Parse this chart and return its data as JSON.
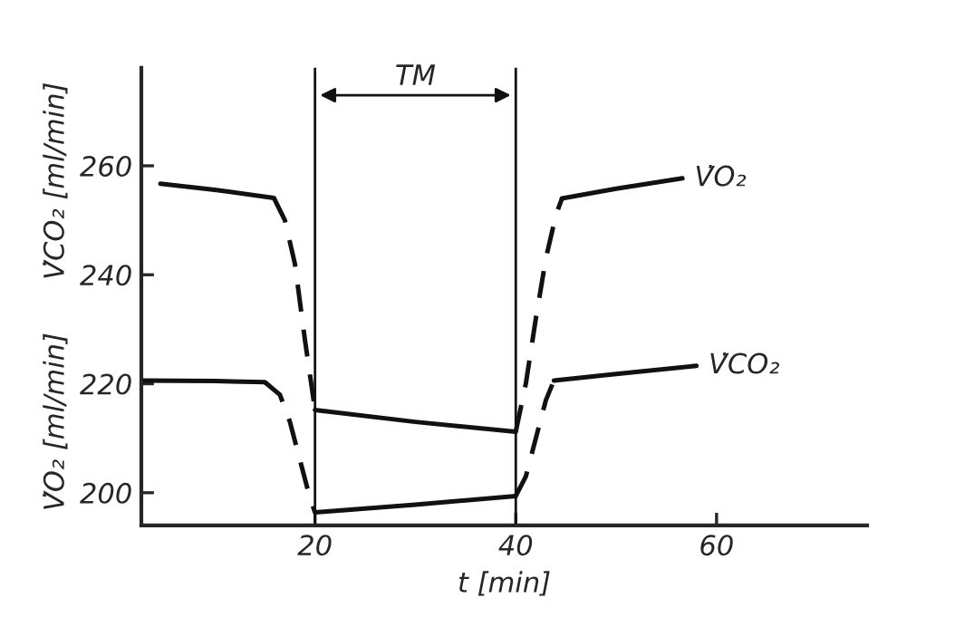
{
  "chart_data": {
    "type": "line",
    "xlabel": "t [min]",
    "ylabel": "V̇O₂ [ml/min]      V̇CO₂ [ml/min]",
    "xlim": [
      2.7,
      75
    ],
    "xticks": [
      20,
      40,
      60
    ],
    "ylim": [
      194,
      278
    ],
    "yticks": [
      200,
      220,
      240,
      260
    ],
    "grid": false,
    "marker": "none",
    "ref_lines": [
      {
        "axis": "x",
        "value": 20,
        "color": "#111111",
        "line_style": "solid"
      },
      {
        "axis": "x",
        "value": 40,
        "color": "#111111",
        "line_style": "solid"
      }
    ],
    "annotations": [
      "TM"
    ],
    "series": [
      {
        "color": "#111111",
        "line_style": "solid",
        "x": [
          4.6,
          10,
          15.9
        ],
        "values": [
          256.7,
          255.6,
          254.1
        ]
      },
      {
        "color": "#111111",
        "line_style": "dashed",
        "x": [
          15.9,
          17,
          18,
          19,
          20
        ],
        "values": [
          254.1,
          250,
          242,
          228,
          215.2
        ]
      },
      {
        "color": "#111111",
        "line_style": "solid",
        "x": [
          20,
          30,
          40
        ],
        "values": [
          215.2,
          213,
          211.2
        ]
      },
      {
        "color": "#111111",
        "line_style": "dashed",
        "x": [
          40,
          41,
          42,
          43,
          44,
          44.6
        ],
        "values": [
          211.2,
          220,
          232,
          243,
          251,
          254
        ]
      },
      {
        "name": "V̇O₂",
        "color": "#111111",
        "line_style": "solid",
        "x": [
          44.6,
          50,
          56.6
        ],
        "values": [
          254,
          255.8,
          257.7
        ]
      },
      {
        "color": "#111111",
        "line_style": "solid",
        "x": [
          2.7,
          10,
          15
        ],
        "values": [
          220.6,
          220.5,
          220.3
        ]
      },
      {
        "color": "#111111",
        "line_style": "dashed",
        "x": [
          15,
          16.5,
          17.5,
          18.5,
          19.5,
          20
        ],
        "values": [
          220.3,
          218,
          213,
          206,
          199,
          196.4
        ]
      },
      {
        "color": "#111111",
        "line_style": "solid",
        "x": [
          20,
          30,
          40
        ],
        "values": [
          196.4,
          197.8,
          199.4
        ]
      },
      {
        "color": "#111111",
        "line_style": "dashed",
        "x": [
          40,
          41,
          42,
          43,
          43.8
        ],
        "values": [
          199.4,
          203,
          210,
          217,
          220.6
        ]
      },
      {
        "name": "V̇CO₂",
        "color": "#111111",
        "line_style": "solid",
        "x": [
          43.8,
          50,
          58
        ],
        "values": [
          220.6,
          221.8,
          223.3
        ]
      }
    ]
  }
}
